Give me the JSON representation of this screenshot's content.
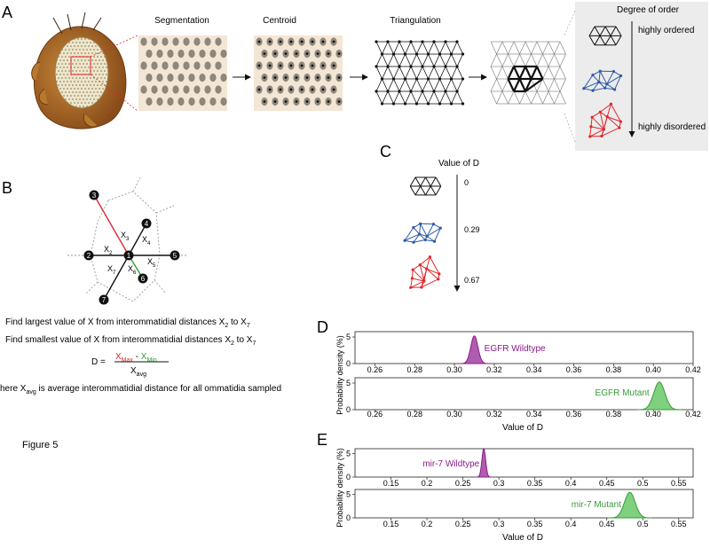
{
  "panel_a": {
    "label": "A",
    "step_labels": [
      "Segmentation",
      "Centroid",
      "Triangulation"
    ],
    "order_box_title": "Degree of order",
    "order_high": "highly ordered",
    "order_low": "highly disordered"
  },
  "panel_b": {
    "label": "B",
    "node_labels": [
      "1",
      "2",
      "3",
      "4",
      "5",
      "6",
      "7"
    ],
    "x_labels": {
      "x2": "X",
      "x2s": "2",
      "x3": "X",
      "x3s": "3",
      "x4": "X",
      "x4s": "4",
      "x5": "X",
      "x5s": "5",
      "x6": "X",
      "x6s": "6",
      "x7": "X",
      "x7s": "7"
    },
    "line1": "Find largest value of X from interommatidial distances X",
    "line1_s1": "2",
    "line1_mid": " to X",
    "line1_s2": "7",
    "line2": "Find smallest value of X from interommatidial distances X",
    "line2_s1": "2",
    "line2_mid": " to X",
    "line2_s2": "7",
    "eq_d": "D =",
    "eq_xmax": "X",
    "eq_xmax_sub": "Max",
    "eq_minus": " - ",
    "eq_xmin": "X",
    "eq_xmin_sub": "Min",
    "eq_xavg": "X",
    "eq_xavg_sub": "avg",
    "line3": "here X",
    "line3_sub": "avg",
    "line3_rest": " is average interommatidial distance for all ommatidia sampled"
  },
  "figure_caption": "Figure 5",
  "panel_c": {
    "label": "C",
    "title": "Value of D",
    "values": [
      "0",
      "0.29",
      "0.67"
    ]
  },
  "colors": {
    "purple": "#8b1a8b",
    "purple_fill": "#b05cb0",
    "green": "#3a9a3a",
    "green_fill": "#7fd07f",
    "red": "#e0262b",
    "blue": "#2f5aa6",
    "tan": "#f3e6d4",
    "dot": "#8d877c"
  },
  "chart_data": [
    {
      "type": "area",
      "panel": "D",
      "xlim": [
        0.25,
        0.42
      ],
      "ylim": [
        0,
        6
      ],
      "xticks": [
        "0.26",
        "0.28",
        "0.30",
        "0.32",
        "0.34",
        "0.36",
        "0.38",
        "0.40",
        "0.42"
      ],
      "yticks": [
        "0",
        "5"
      ],
      "ylabel": "Probability density (%)",
      "xlabel": "Value of D",
      "series": [
        {
          "name": "EGFR Wildtype",
          "peak_x": 0.31,
          "sd": 0.0018,
          "peak_y": 5.2
        },
        {
          "name": "EGFR Mutant",
          "peak_x": 0.403,
          "sd": 0.0028,
          "peak_y": 5.2
        }
      ]
    },
    {
      "type": "area",
      "panel": "E",
      "xlim": [
        0.1,
        0.57
      ],
      "ylim": [
        0,
        6
      ],
      "xticks": [
        "0.15",
        "0.2",
        "0.25",
        "0.3",
        "0.35",
        "0.4",
        "0.45",
        "0.5",
        "0.55"
      ],
      "yticks": [
        "0",
        "5"
      ],
      "ylabel": "Probability density (%)",
      "xlabel": "Value of D",
      "series": [
        {
          "name": "mir-7 Wildtype",
          "peak_x": 0.279,
          "sd": 0.0026,
          "peak_y": 6.0
        },
        {
          "name": "mir-7 Mutant",
          "peak_x": 0.482,
          "sd": 0.0075,
          "peak_y": 5.4
        }
      ]
    }
  ]
}
